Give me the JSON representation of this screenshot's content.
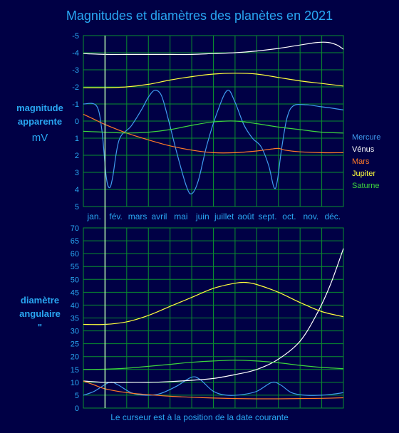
{
  "title": "Magnitudes et diamètres des planètes en 2021",
  "footer": "Le curseur est à la position de la date courante",
  "magnitude_ylabel": {
    "line1": "magnitude",
    "line2": "apparente",
    "line3": "mV"
  },
  "diameter_ylabel": {
    "line1": "diamètre",
    "line2": "angulaire",
    "line3": "\""
  },
  "months": [
    "jan.",
    "fév.",
    "mars",
    "avril",
    "mai",
    "juin",
    "juillet",
    "août",
    "sept.",
    "oct.",
    "nov.",
    "déc."
  ],
  "colors": {
    "background": "#000045",
    "grid": "#0a8f2e",
    "axis_text": "#29a6f2",
    "cursor": "#b8f3b0"
  },
  "legend": [
    {
      "name": "Mercure",
      "color": "#3f9cf0"
    },
    {
      "name": "Vénus",
      "color": "#ffffff"
    },
    {
      "name": "Mars",
      "color": "#ff7a28"
    },
    {
      "name": "Jupiter",
      "color": "#ffff3c"
    },
    {
      "name": "Saturne",
      "color": "#3dd63d"
    }
  ],
  "chart_data": [
    {
      "type": "line",
      "name": "magnitude",
      "x_unit": "month (fraction of year)",
      "ylim": [
        5,
        -5
      ],
      "yticks": [
        -5,
        -4,
        -3,
        -2,
        -1,
        0,
        1,
        2,
        3,
        4,
        5
      ],
      "cursor_x": 1.0,
      "grid": true,
      "series": [
        {
          "name": "Mercure",
          "color": "#3f9cf0",
          "points": [
            [
              0,
              -1
            ],
            [
              0.6,
              -0.9
            ],
            [
              0.85,
              0.5
            ],
            [
              1.05,
              3.2
            ],
            [
              1.2,
              3.9
            ],
            [
              1.35,
              3.3
            ],
            [
              1.65,
              1.1
            ],
            [
              2.2,
              0.3
            ],
            [
              2.7,
              -0.7
            ],
            [
              3.0,
              -1.4
            ],
            [
              3.3,
              -1.8
            ],
            [
              3.6,
              -1.5
            ],
            [
              3.9,
              -0.2
            ],
            [
              4.3,
              1.8
            ],
            [
              4.75,
              3.8
            ],
            [
              5.0,
              4.25
            ],
            [
              5.3,
              3.5
            ],
            [
              5.7,
              1.4
            ],
            [
              6.2,
              -0.6
            ],
            [
              6.65,
              -1.8
            ],
            [
              7.0,
              -1.1
            ],
            [
              7.4,
              0.2
            ],
            [
              7.8,
              1.0
            ],
            [
              8.2,
              1.5
            ],
            [
              8.55,
              2.6
            ],
            [
              8.8,
              3.9
            ],
            [
              8.95,
              3.5
            ],
            [
              9.15,
              1.6
            ],
            [
              9.4,
              -0.2
            ],
            [
              9.7,
              -0.9
            ],
            [
              10.3,
              -0.95
            ],
            [
              10.9,
              -0.85
            ],
            [
              11.5,
              -0.75
            ],
            [
              12,
              -0.65
            ]
          ]
        },
        {
          "name": "Vénus",
          "color": "#ffffff",
          "points": [
            [
              0,
              -3.95
            ],
            [
              1,
              -3.9
            ],
            [
              2,
              -3.9
            ],
            [
              3,
              -3.9
            ],
            [
              4,
              -3.9
            ],
            [
              5,
              -3.9
            ],
            [
              6,
              -3.95
            ],
            [
              7,
              -4.0
            ],
            [
              8,
              -4.1
            ],
            [
              9,
              -4.25
            ],
            [
              10,
              -4.45
            ],
            [
              10.8,
              -4.6
            ],
            [
              11.3,
              -4.6
            ],
            [
              11.7,
              -4.45
            ],
            [
              12,
              -4.2
            ]
          ]
        },
        {
          "name": "Mars",
          "color": "#ff7a28",
          "points": [
            [
              0,
              -0.4
            ],
            [
              0.5,
              -0.1
            ],
            [
              1,
              0.2
            ],
            [
              2,
              0.7
            ],
            [
              3,
              1.1
            ],
            [
              4,
              1.45
            ],
            [
              5,
              1.7
            ],
            [
              6,
              1.85
            ],
            [
              7,
              1.85
            ],
            [
              8,
              1.75
            ],
            [
              8.6,
              1.65
            ],
            [
              9,
              1.6
            ],
            [
              9.3,
              1.7
            ],
            [
              10,
              1.8
            ],
            [
              11,
              1.85
            ],
            [
              12,
              1.85
            ]
          ]
        },
        {
          "name": "Jupiter",
          "color": "#ffff3c",
          "points": [
            [
              0,
              -1.95
            ],
            [
              1,
              -1.95
            ],
            [
              2,
              -2.0
            ],
            [
              3,
              -2.15
            ],
            [
              4,
              -2.4
            ],
            [
              5,
              -2.6
            ],
            [
              6,
              -2.75
            ],
            [
              7,
              -2.8
            ],
            [
              8,
              -2.75
            ],
            [
              9,
              -2.55
            ],
            [
              10,
              -2.35
            ],
            [
              11,
              -2.2
            ],
            [
              12,
              -2.05
            ]
          ]
        },
        {
          "name": "Saturne",
          "color": "#3dd63d",
          "points": [
            [
              0,
              0.6
            ],
            [
              1,
              0.65
            ],
            [
              2,
              0.7
            ],
            [
              3,
              0.65
            ],
            [
              4,
              0.5
            ],
            [
              5,
              0.25
            ],
            [
              6,
              0.05
            ],
            [
              7,
              0.0
            ],
            [
              8,
              0.15
            ],
            [
              9,
              0.35
            ],
            [
              10,
              0.5
            ],
            [
              11,
              0.65
            ],
            [
              12,
              0.7
            ]
          ]
        }
      ]
    },
    {
      "type": "line",
      "name": "diamètre angulaire",
      "x_unit": "month (fraction of year)",
      "ylim": [
        0,
        70
      ],
      "yticks": [
        0,
        5,
        10,
        15,
        20,
        25,
        30,
        35,
        40,
        45,
        50,
        55,
        60,
        65,
        70
      ],
      "cursor_x": 1.0,
      "grid": true,
      "series": [
        {
          "name": "Mercure",
          "color": "#3f9cf0",
          "points": [
            [
              0,
              5
            ],
            [
              0.5,
              6.5
            ],
            [
              1.2,
              10
            ],
            [
              1.6,
              9
            ],
            [
              2.2,
              6
            ],
            [
              2.8,
              5
            ],
            [
              3.5,
              5.5
            ],
            [
              4.3,
              8.5
            ],
            [
              5,
              12
            ],
            [
              5.4,
              11
            ],
            [
              6,
              6.5
            ],
            [
              6.6,
              5
            ],
            [
              7.3,
              5.2
            ],
            [
              8,
              6.5
            ],
            [
              8.7,
              10
            ],
            [
              9.1,
              9
            ],
            [
              9.6,
              6
            ],
            [
              10.2,
              5
            ],
            [
              11,
              5
            ],
            [
              11.6,
              5.5
            ],
            [
              12,
              6
            ]
          ]
        },
        {
          "name": "Vénus",
          "color": "#ffffff",
          "points": [
            [
              0,
              10.5
            ],
            [
              1,
              10
            ],
            [
              2,
              10
            ],
            [
              3,
              10
            ],
            [
              4,
              10.3
            ],
            [
              5,
              10.8
            ],
            [
              6,
              11.5
            ],
            [
              7,
              13
            ],
            [
              8,
              15
            ],
            [
              9,
              19
            ],
            [
              10,
              26
            ],
            [
              10.8,
              37
            ],
            [
              11.4,
              48
            ],
            [
              12,
              62
            ]
          ]
        },
        {
          "name": "Mars",
          "color": "#ff7a28",
          "points": [
            [
              0,
              10.5
            ],
            [
              0.5,
              9
            ],
            [
              1,
              7.5
            ],
            [
              2,
              6
            ],
            [
              3,
              5.2
            ],
            [
              4,
              4.6
            ],
            [
              5,
              4.2
            ],
            [
              6,
              3.9
            ],
            [
              7,
              3.7
            ],
            [
              8,
              3.6
            ],
            [
              9,
              3.6
            ],
            [
              10,
              3.7
            ],
            [
              11,
              3.8
            ],
            [
              12,
              4.0
            ]
          ]
        },
        {
          "name": "Jupiter",
          "color": "#ffff3c",
          "points": [
            [
              0,
              32.5
            ],
            [
              1,
              32.5
            ],
            [
              2,
              33.5
            ],
            [
              3,
              36
            ],
            [
              4,
              39.5
            ],
            [
              5,
              43
            ],
            [
              6,
              46.5
            ],
            [
              7,
              48.5
            ],
            [
              7.5,
              48.8
            ],
            [
              8,
              48
            ],
            [
              9,
              45
            ],
            [
              10,
              41
            ],
            [
              11,
              37.5
            ],
            [
              12,
              35.5
            ]
          ]
        },
        {
          "name": "Saturne",
          "color": "#3dd63d",
          "points": [
            [
              0,
              15
            ],
            [
              1,
              15.1
            ],
            [
              2,
              15.5
            ],
            [
              3,
              16.2
            ],
            [
              4,
              17
            ],
            [
              5,
              17.8
            ],
            [
              6,
              18.3
            ],
            [
              7,
              18.6
            ],
            [
              8,
              18.3
            ],
            [
              9,
              17.6
            ],
            [
              10,
              16.6
            ],
            [
              11,
              15.8
            ],
            [
              12,
              15.3
            ]
          ]
        }
      ]
    }
  ]
}
